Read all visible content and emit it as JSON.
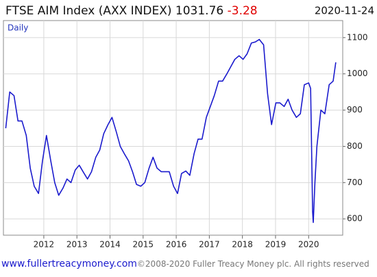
{
  "chart_data": {
    "type": "line",
    "title": "FTSE AIM Index (AXX INDEX)",
    "last_value": 1031.76,
    "change": -3.28,
    "date": "2020-11-24",
    "frequency_label": "Daily",
    "source_url": "www.fullertreacymoney.com",
    "copyright": "©2008-2020 Fuller Treacy Money plc. All rights reserved",
    "xlim": [
      2010.78,
      2021.03
    ],
    "xticks": [
      2012,
      2013,
      2014,
      2015,
      2016,
      2017,
      2018,
      2019,
      2020
    ],
    "ylim": [
      555,
      1147
    ],
    "yticks": [
      600,
      700,
      800,
      900,
      1000,
      1100
    ],
    "grid": true,
    "series": [
      {
        "name": "FTSE AIM Index",
        "color": "#1a1acd",
        "x": [
          2010.85,
          2010.97,
          2011.1,
          2011.22,
          2011.34,
          2011.47,
          2011.59,
          2011.71,
          2011.84,
          2011.96,
          2012.08,
          2012.21,
          2012.33,
          2012.45,
          2012.58,
          2012.7,
          2012.82,
          2012.95,
          2013.07,
          2013.2,
          2013.32,
          2013.44,
          2013.57,
          2013.69,
          2013.81,
          2013.94,
          2014.06,
          2014.19,
          2014.31,
          2014.43,
          2014.56,
          2014.68,
          2014.8,
          2014.93,
          2015.05,
          2015.18,
          2015.3,
          2015.42,
          2015.55,
          2015.67,
          2015.79,
          2015.92,
          2016.04,
          2016.16,
          2016.29,
          2016.41,
          2016.54,
          2016.66,
          2016.78,
          2016.91,
          2017.03,
          2017.15,
          2017.28,
          2017.4,
          2017.53,
          2017.65,
          2017.77,
          2017.9,
          2018.02,
          2018.14,
          2018.27,
          2018.39,
          2018.51,
          2018.64,
          2018.76,
          2018.88,
          2019.01,
          2019.13,
          2019.26,
          2019.38,
          2019.5,
          2019.63,
          2019.75,
          2019.87,
          2020.0,
          2020.06,
          2020.12,
          2020.14,
          2020.19,
          2020.25,
          2020.37,
          2020.49,
          2020.62,
          2020.74,
          2020.82
        ],
        "values": [
          850,
          950,
          940,
          870,
          870,
          830,
          740,
          690,
          670,
          760,
          830,
          760,
          700,
          665,
          685,
          710,
          700,
          735,
          748,
          728,
          710,
          730,
          770,
          790,
          835,
          860,
          880,
          840,
          800,
          780,
          760,
          730,
          695,
          690,
          700,
          740,
          770,
          740,
          730,
          730,
          730,
          690,
          670,
          725,
          732,
          720,
          780,
          820,
          820,
          880,
          910,
          940,
          980,
          980,
          1000,
          1020,
          1040,
          1050,
          1040,
          1055,
          1085,
          1088,
          1095,
          1080,
          945,
          860,
          920,
          920,
          910,
          930,
          900,
          880,
          890,
          970,
          975,
          960,
          620,
          590,
          700,
          800,
          900,
          890,
          970,
          980,
          1031.76
        ]
      }
    ]
  }
}
